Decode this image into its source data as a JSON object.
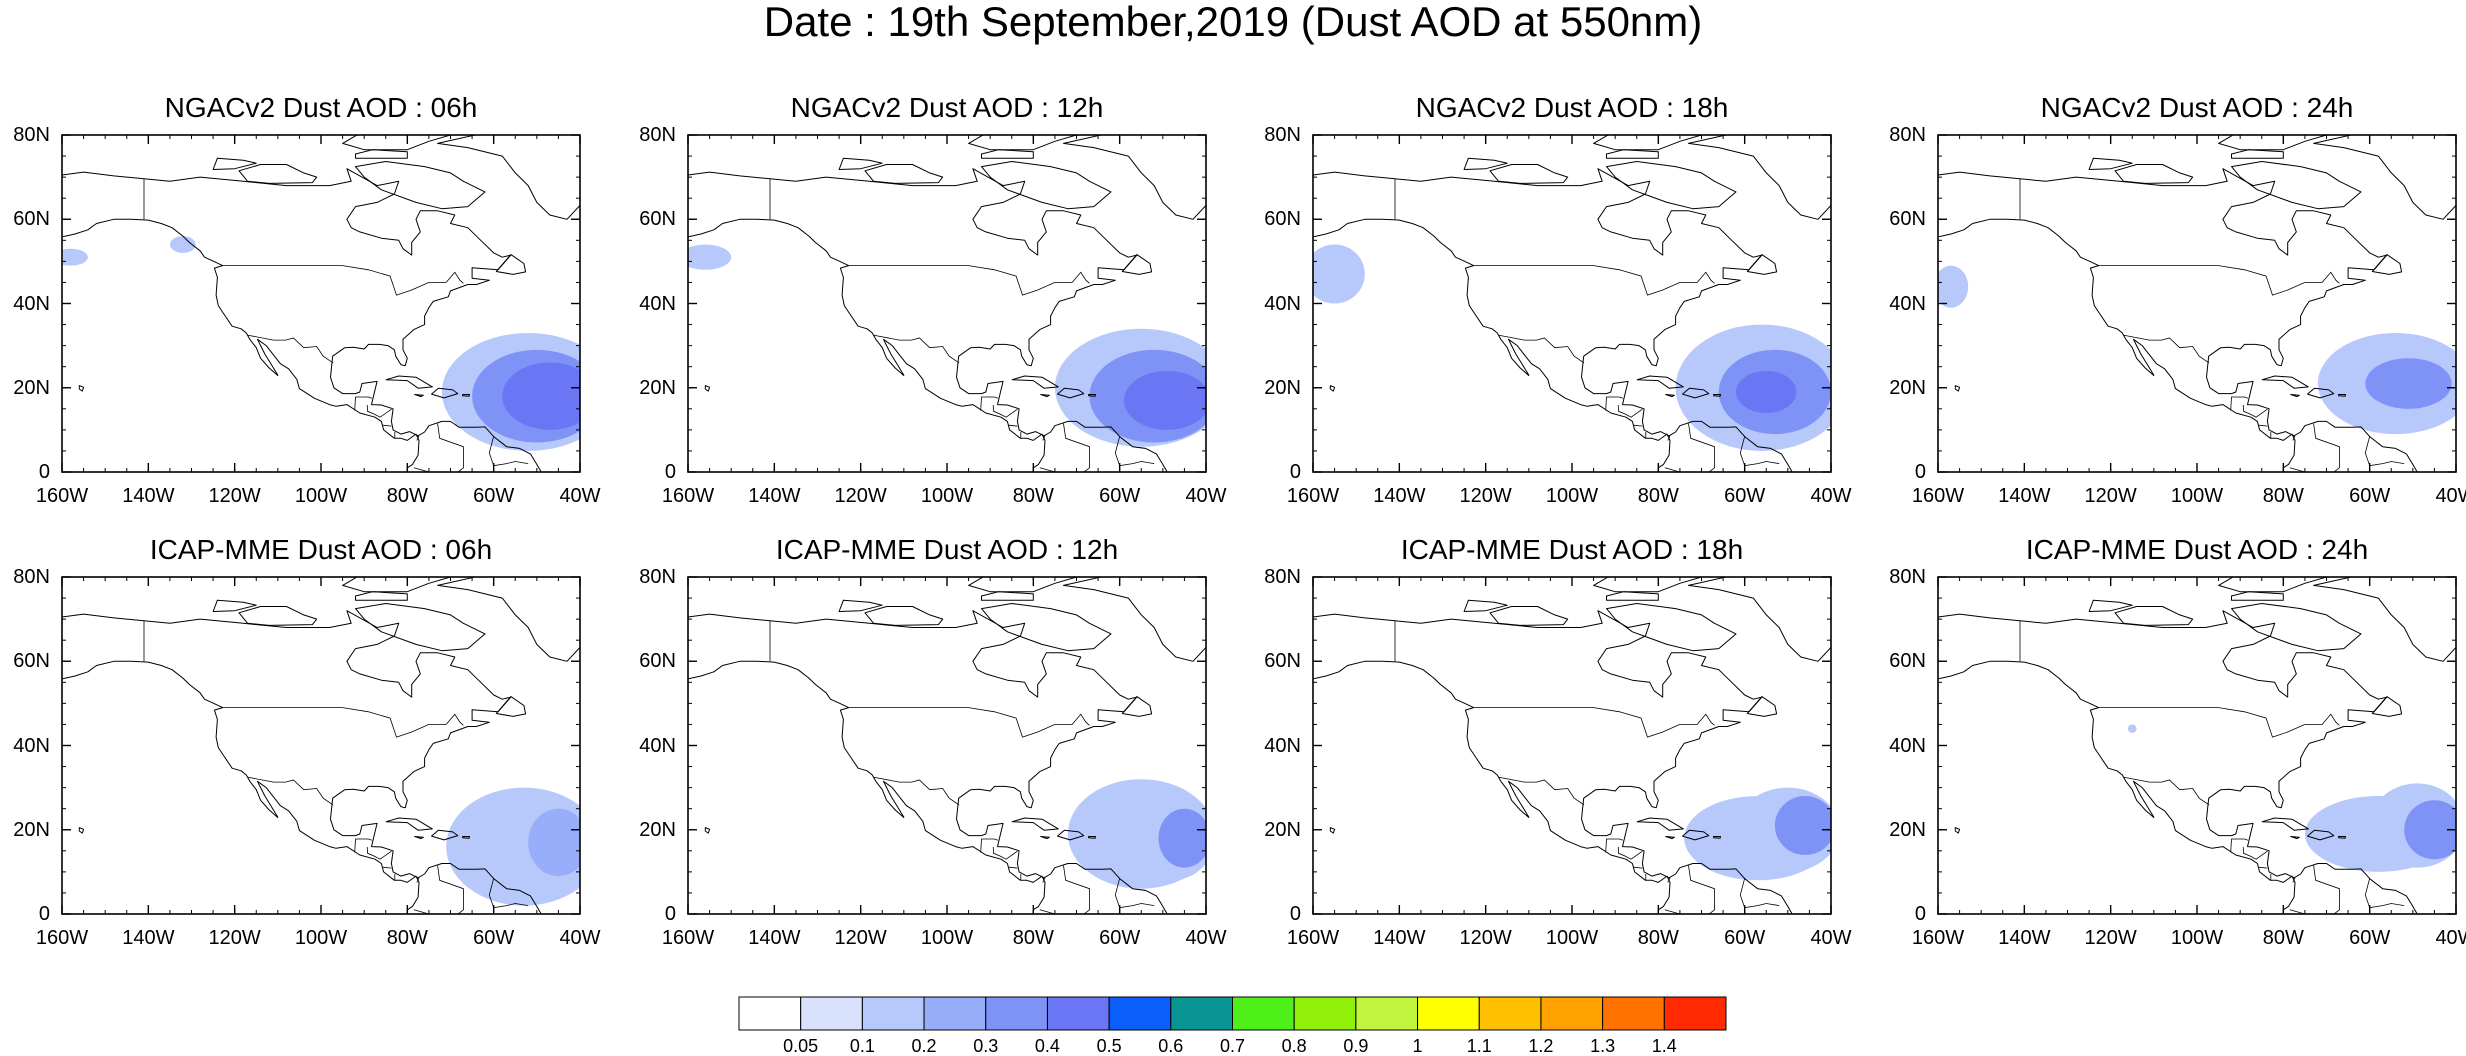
{
  "title": "Date : 19th September,2019 (Dust AOD at 550nm)",
  "lon_ticks": [
    "160W",
    "140W",
    "120W",
    "100W",
    "80W",
    "60W",
    "40W"
  ],
  "lat_ticks": [
    "80N",
    "60N",
    "40N",
    "20N",
    "0"
  ],
  "panels": [
    {
      "title": "NGACv2 Dust AOD : 06h",
      "model": "NGACv2",
      "hour": "06h",
      "plumes": [
        {
          "lon": -47,
          "lat": 18,
          "rx": 11,
          "ry": 8,
          "level": 0.45
        },
        {
          "lon": -50,
          "lat": 18,
          "rx": 15,
          "ry": 11,
          "level": 0.35
        },
        {
          "lon": -52,
          "lat": 19,
          "rx": 20,
          "ry": 14,
          "level": 0.15
        },
        {
          "lon": -132,
          "lat": 54,
          "rx": 3,
          "ry": 2,
          "level": 0.15
        },
        {
          "lon": -158,
          "lat": 51,
          "rx": 4,
          "ry": 2,
          "level": 0.1
        }
      ]
    },
    {
      "title": "NGACv2 Dust AOD : 12h",
      "model": "NGACv2",
      "hour": "12h",
      "plumes": [
        {
          "lon": -49,
          "lat": 17,
          "rx": 10,
          "ry": 7,
          "level": 0.45
        },
        {
          "lon": -52,
          "lat": 18,
          "rx": 15,
          "ry": 11,
          "level": 0.35
        },
        {
          "lon": -55,
          "lat": 20,
          "rx": 20,
          "ry": 14,
          "level": 0.15
        },
        {
          "lon": -156,
          "lat": 51,
          "rx": 6,
          "ry": 3,
          "level": 0.1
        }
      ]
    },
    {
      "title": "NGACv2 Dust AOD : 18h",
      "model": "NGACv2",
      "hour": "18h",
      "plumes": [
        {
          "lon": -55,
          "lat": 19,
          "rx": 7,
          "ry": 5,
          "level": 0.45
        },
        {
          "lon": -53,
          "lat": 19,
          "rx": 13,
          "ry": 10,
          "level": 0.35
        },
        {
          "lon": -56,
          "lat": 20,
          "rx": 20,
          "ry": 15,
          "level": 0.15
        },
        {
          "lon": -155,
          "lat": 47,
          "rx": 7,
          "ry": 7,
          "level": 0.1
        }
      ]
    },
    {
      "title": "NGACv2 Dust AOD : 24h",
      "model": "NGACv2",
      "hour": "24h",
      "plumes": [
        {
          "lon": -51,
          "lat": 21,
          "rx": 10,
          "ry": 6,
          "level": 0.35
        },
        {
          "lon": -54,
          "lat": 21,
          "rx": 18,
          "ry": 12,
          "level": 0.15
        },
        {
          "lon": -157,
          "lat": 44,
          "rx": 4,
          "ry": 5,
          "level": 0.1
        }
      ]
    },
    {
      "title": "ICAP-MME Dust AOD : 06h",
      "model": "ICAP-MME",
      "hour": "06h",
      "plumes": [
        {
          "lon": -45,
          "lat": 17,
          "rx": 7,
          "ry": 8,
          "level": 0.25
        },
        {
          "lon": -53,
          "lat": 16,
          "rx": 18,
          "ry": 14,
          "level": 0.1
        }
      ]
    },
    {
      "title": "ICAP-MME Dust AOD : 12h",
      "model": "ICAP-MME",
      "hour": "12h",
      "plumes": [
        {
          "lon": -45,
          "lat": 18,
          "rx": 6,
          "ry": 7,
          "level": 0.35
        },
        {
          "lon": -48,
          "lat": 18,
          "rx": 10,
          "ry": 10,
          "level": 0.15
        },
        {
          "lon": -55,
          "lat": 19,
          "rx": 17,
          "ry": 13,
          "level": 0.1
        }
      ]
    },
    {
      "title": "ICAP-MME Dust AOD : 18h",
      "model": "ICAP-MME",
      "hour": "18h",
      "plumes": [
        {
          "lon": -46,
          "lat": 21,
          "rx": 7,
          "ry": 7,
          "level": 0.35
        },
        {
          "lon": -50,
          "lat": 20,
          "rx": 12,
          "ry": 10,
          "level": 0.15
        },
        {
          "lon": -57,
          "lat": 18,
          "rx": 17,
          "ry": 10,
          "level": 0.1
        }
      ]
    },
    {
      "title": "ICAP-MME Dust AOD : 24h",
      "model": "ICAP-MME",
      "hour": "24h",
      "plumes": [
        {
          "lon": -45,
          "lat": 20,
          "rx": 7,
          "ry": 7,
          "level": 0.35
        },
        {
          "lon": -49,
          "lat": 21,
          "rx": 11,
          "ry": 10,
          "level": 0.15
        },
        {
          "lon": -58,
          "lat": 19,
          "rx": 17,
          "ry": 9,
          "level": 0.1
        },
        {
          "lon": -115,
          "lat": 44,
          "rx": 1,
          "ry": 1,
          "level": 0.1
        }
      ]
    }
  ],
  "map_extent": {
    "lon": [
      -160,
      -40
    ],
    "lat": [
      0,
      80
    ]
  },
  "colorbar": {
    "labels": [
      "0.05",
      "0.1",
      "0.2",
      "0.3",
      "0.4",
      "0.5",
      "0.6",
      "0.7",
      "0.8",
      "0.9",
      "1",
      "1.1",
      "1.2",
      "1.3",
      "1.4"
    ],
    "thresholds": [
      0.05,
      0.1,
      0.2,
      0.3,
      0.4,
      0.5,
      0.6,
      0.7,
      0.8,
      0.9,
      1.0,
      1.1,
      1.2,
      1.3,
      1.4
    ],
    "colors": [
      "#ffffff",
      "#d8e2fd",
      "#b7c8fb",
      "#98aefa",
      "#7f93f7",
      "#6a76f4",
      "#0a5ffa",
      "#0a9595",
      "#4ff019",
      "#91f00a",
      "#c2f53e",
      "#ffff00",
      "#ffc000",
      "#ffa200",
      "#ff7200",
      "#ff2a00"
    ]
  }
}
